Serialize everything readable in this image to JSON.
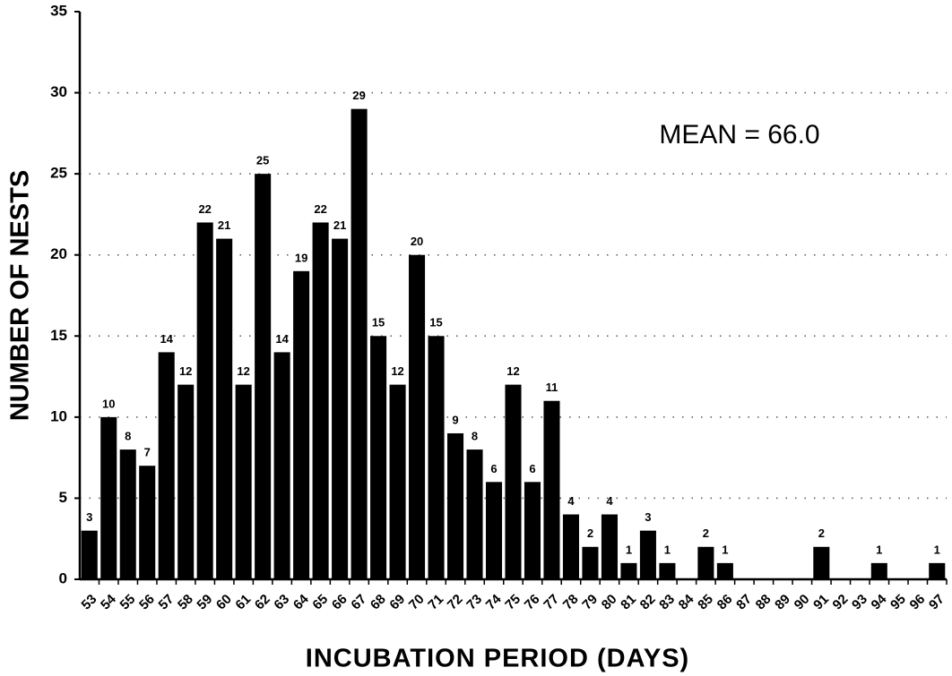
{
  "chart_data": {
    "type": "bar",
    "x_label": "INCUBATION PERIOD (DAYS)",
    "y_label": "NUMBER OF NESTS",
    "annotation": "MEAN = 66.0",
    "categories": [
      "53",
      "54",
      "55",
      "56",
      "57",
      "58",
      "59",
      "60",
      "61",
      "62",
      "63",
      "64",
      "65",
      "66",
      "67",
      "68",
      "69",
      "70",
      "71",
      "72",
      "73",
      "74",
      "75",
      "76",
      "77",
      "78",
      "79",
      "80",
      "81",
      "82",
      "83",
      "84",
      "85",
      "86",
      "87",
      "88",
      "89",
      "90",
      "91",
      "92",
      "93",
      "94",
      "95",
      "96",
      "97"
    ],
    "values": [
      3,
      10,
      8,
      7,
      14,
      12,
      22,
      21,
      12,
      25,
      14,
      19,
      22,
      21,
      29,
      15,
      12,
      20,
      15,
      9,
      8,
      6,
      12,
      6,
      11,
      4,
      2,
      4,
      1,
      3,
      1,
      0,
      2,
      1,
      0,
      0,
      0,
      0,
      2,
      0,
      0,
      1,
      0,
      0,
      1
    ],
    "color": "#000000",
    "ylim": [
      0,
      35
    ],
    "yticks": [
      0,
      5,
      10,
      15,
      20,
      25,
      30,
      35
    ],
    "grid": true
  }
}
